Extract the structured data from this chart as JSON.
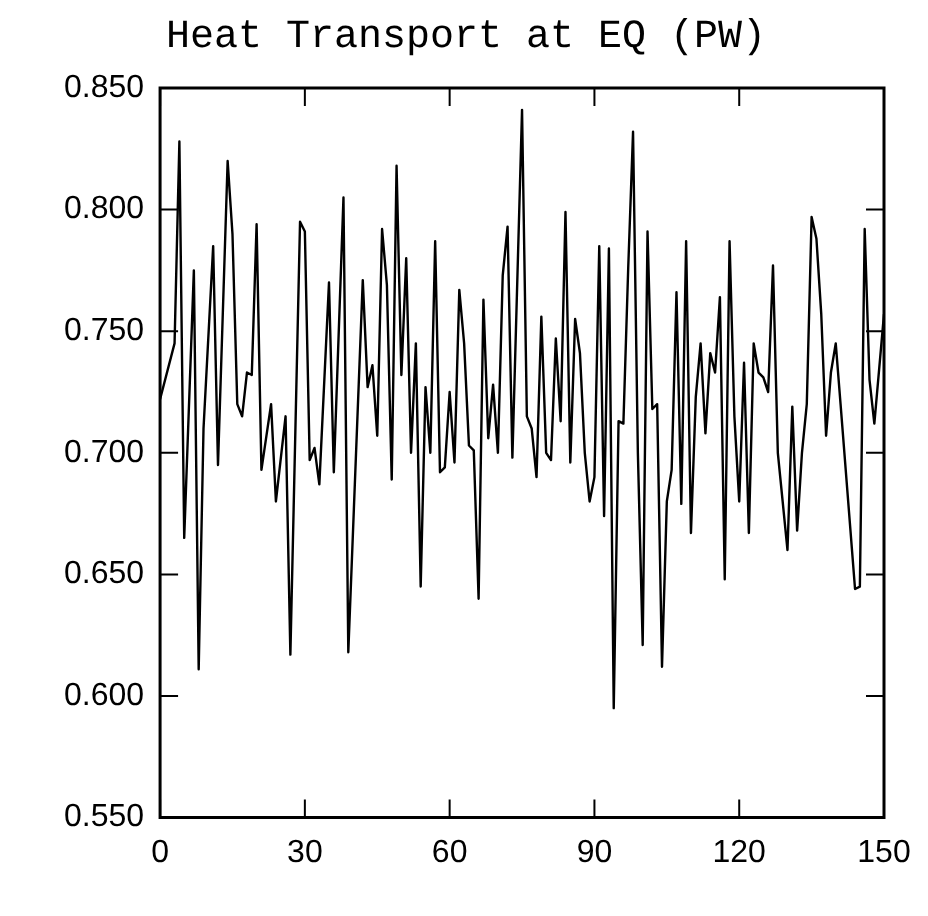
{
  "chart_data": {
    "type": "line",
    "title": "Heat Transport at EQ (PW)",
    "x": [
      0,
      3,
      4,
      5,
      7,
      8,
      9,
      11,
      12,
      14,
      15,
      16,
      17,
      18,
      19,
      20,
      21,
      23,
      24,
      26,
      27,
      29,
      30,
      31,
      32,
      33,
      35,
      36,
      38,
      39,
      42,
      43,
      44,
      45,
      46,
      47,
      48,
      49,
      50,
      51,
      52,
      53,
      54,
      55,
      56,
      57,
      58,
      59,
      60,
      61,
      62,
      63,
      64,
      65,
      66,
      67,
      68,
      69,
      70,
      71,
      72,
      73,
      75,
      76,
      77,
      78,
      79,
      80,
      81,
      82,
      83,
      84,
      85,
      86,
      87,
      88,
      89,
      90,
      91,
      92,
      93,
      94,
      95,
      96,
      97,
      98,
      99,
      100,
      101,
      102,
      103,
      104,
      105,
      106,
      107,
      108,
      109,
      110,
      111,
      112,
      113,
      114,
      115,
      116,
      117,
      118,
      119,
      120,
      121,
      122,
      123,
      124,
      125,
      126,
      127,
      128,
      129,
      130,
      131,
      132,
      133,
      134,
      135,
      136,
      137,
      138,
      139,
      140,
      141,
      144,
      145,
      146,
      147,
      148,
      150
    ],
    "series": [
      {
        "color": "#000000",
        "values": [
          0.722,
          0.745,
          0.828,
          0.665,
          0.775,
          0.611,
          0.71,
          0.785,
          0.695,
          0.82,
          0.79,
          0.72,
          0.715,
          0.733,
          0.732,
          0.794,
          0.693,
          0.72,
          0.68,
          0.715,
          0.617,
          0.795,
          0.791,
          0.697,
          0.702,
          0.687,
          0.77,
          0.692,
          0.805,
          0.618,
          0.771,
          0.727,
          0.736,
          0.707,
          0.792,
          0.769,
          0.689,
          0.818,
          0.732,
          0.78,
          0.7,
          0.745,
          0.645,
          0.727,
          0.7,
          0.787,
          0.692,
          0.694,
          0.725,
          0.696,
          0.767,
          0.745,
          0.703,
          0.701,
          0.64,
          0.763,
          0.706,
          0.728,
          0.7,
          0.773,
          0.793,
          0.698,
          0.841,
          0.715,
          0.71,
          0.69,
          0.756,
          0.7,
          0.697,
          0.747,
          0.713,
          0.799,
          0.696,
          0.755,
          0.741,
          0.7,
          0.68,
          0.69,
          0.785,
          0.674,
          0.784,
          0.595,
          0.713,
          0.712,
          0.776,
          0.832,
          0.7,
          0.621,
          0.791,
          0.718,
          0.72,
          0.612,
          0.68,
          0.693,
          0.766,
          0.679,
          0.787,
          0.667,
          0.723,
          0.745,
          0.708,
          0.741,
          0.733,
          0.764,
          0.648,
          0.787,
          0.715,
          0.68,
          0.737,
          0.667,
          0.745,
          0.733,
          0.731,
          0.725,
          0.777,
          0.7,
          0.68,
          0.66,
          0.719,
          0.668,
          0.7,
          0.72,
          0.797,
          0.788,
          0.757,
          0.707,
          0.733,
          0.745,
          0.72,
          0.644,
          0.645,
          0.792,
          0.73,
          0.712,
          0.757
        ]
      }
    ],
    "xlim": [
      0,
      150
    ],
    "xticks": [
      0,
      30,
      60,
      90,
      120,
      150
    ],
    "ylim": [
      0.55,
      0.85
    ],
    "yticks": [
      {
        "value": 0.55,
        "label": "0.550"
      },
      {
        "value": 0.6,
        "label": "0.600"
      },
      {
        "value": 0.65,
        "label": "0.650"
      },
      {
        "value": 0.7,
        "label": "0.700"
      },
      {
        "value": 0.75,
        "label": "0.750"
      },
      {
        "value": 0.8,
        "label": "0.800"
      },
      {
        "value": 0.85,
        "label": "0.850"
      }
    ],
    "grid": false,
    "legend": false,
    "marker": "none",
    "line_style": "solid"
  }
}
